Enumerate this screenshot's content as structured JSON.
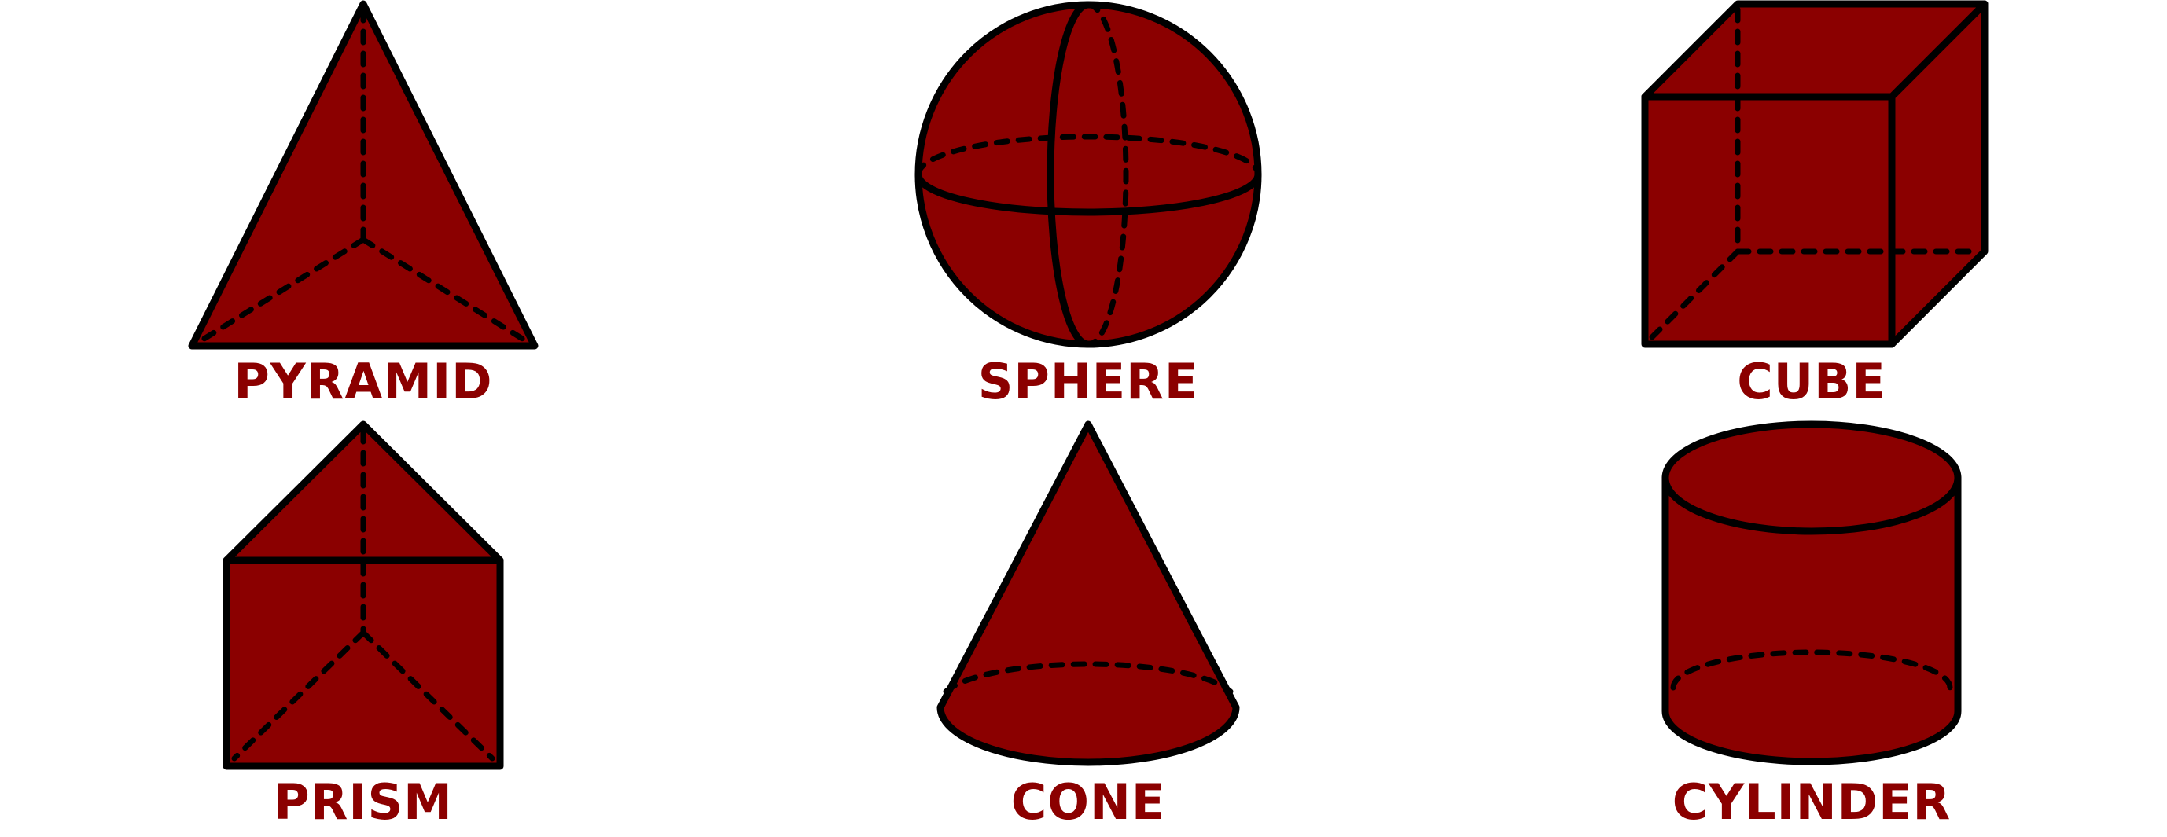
{
  "colors": {
    "shape_fill": "#8b0000",
    "label": "#8b0000",
    "outline": "#000000",
    "background": "#ffffff"
  },
  "shapes": [
    {
      "name": "pyramid",
      "label": "PYRAMID"
    },
    {
      "name": "sphere",
      "label": "SPHERE"
    },
    {
      "name": "cube",
      "label": "CUBE"
    },
    {
      "name": "prism",
      "label": "PRISM"
    },
    {
      "name": "cone",
      "label": "CONE"
    },
    {
      "name": "cylinder",
      "label": "CYLINDER"
    }
  ]
}
